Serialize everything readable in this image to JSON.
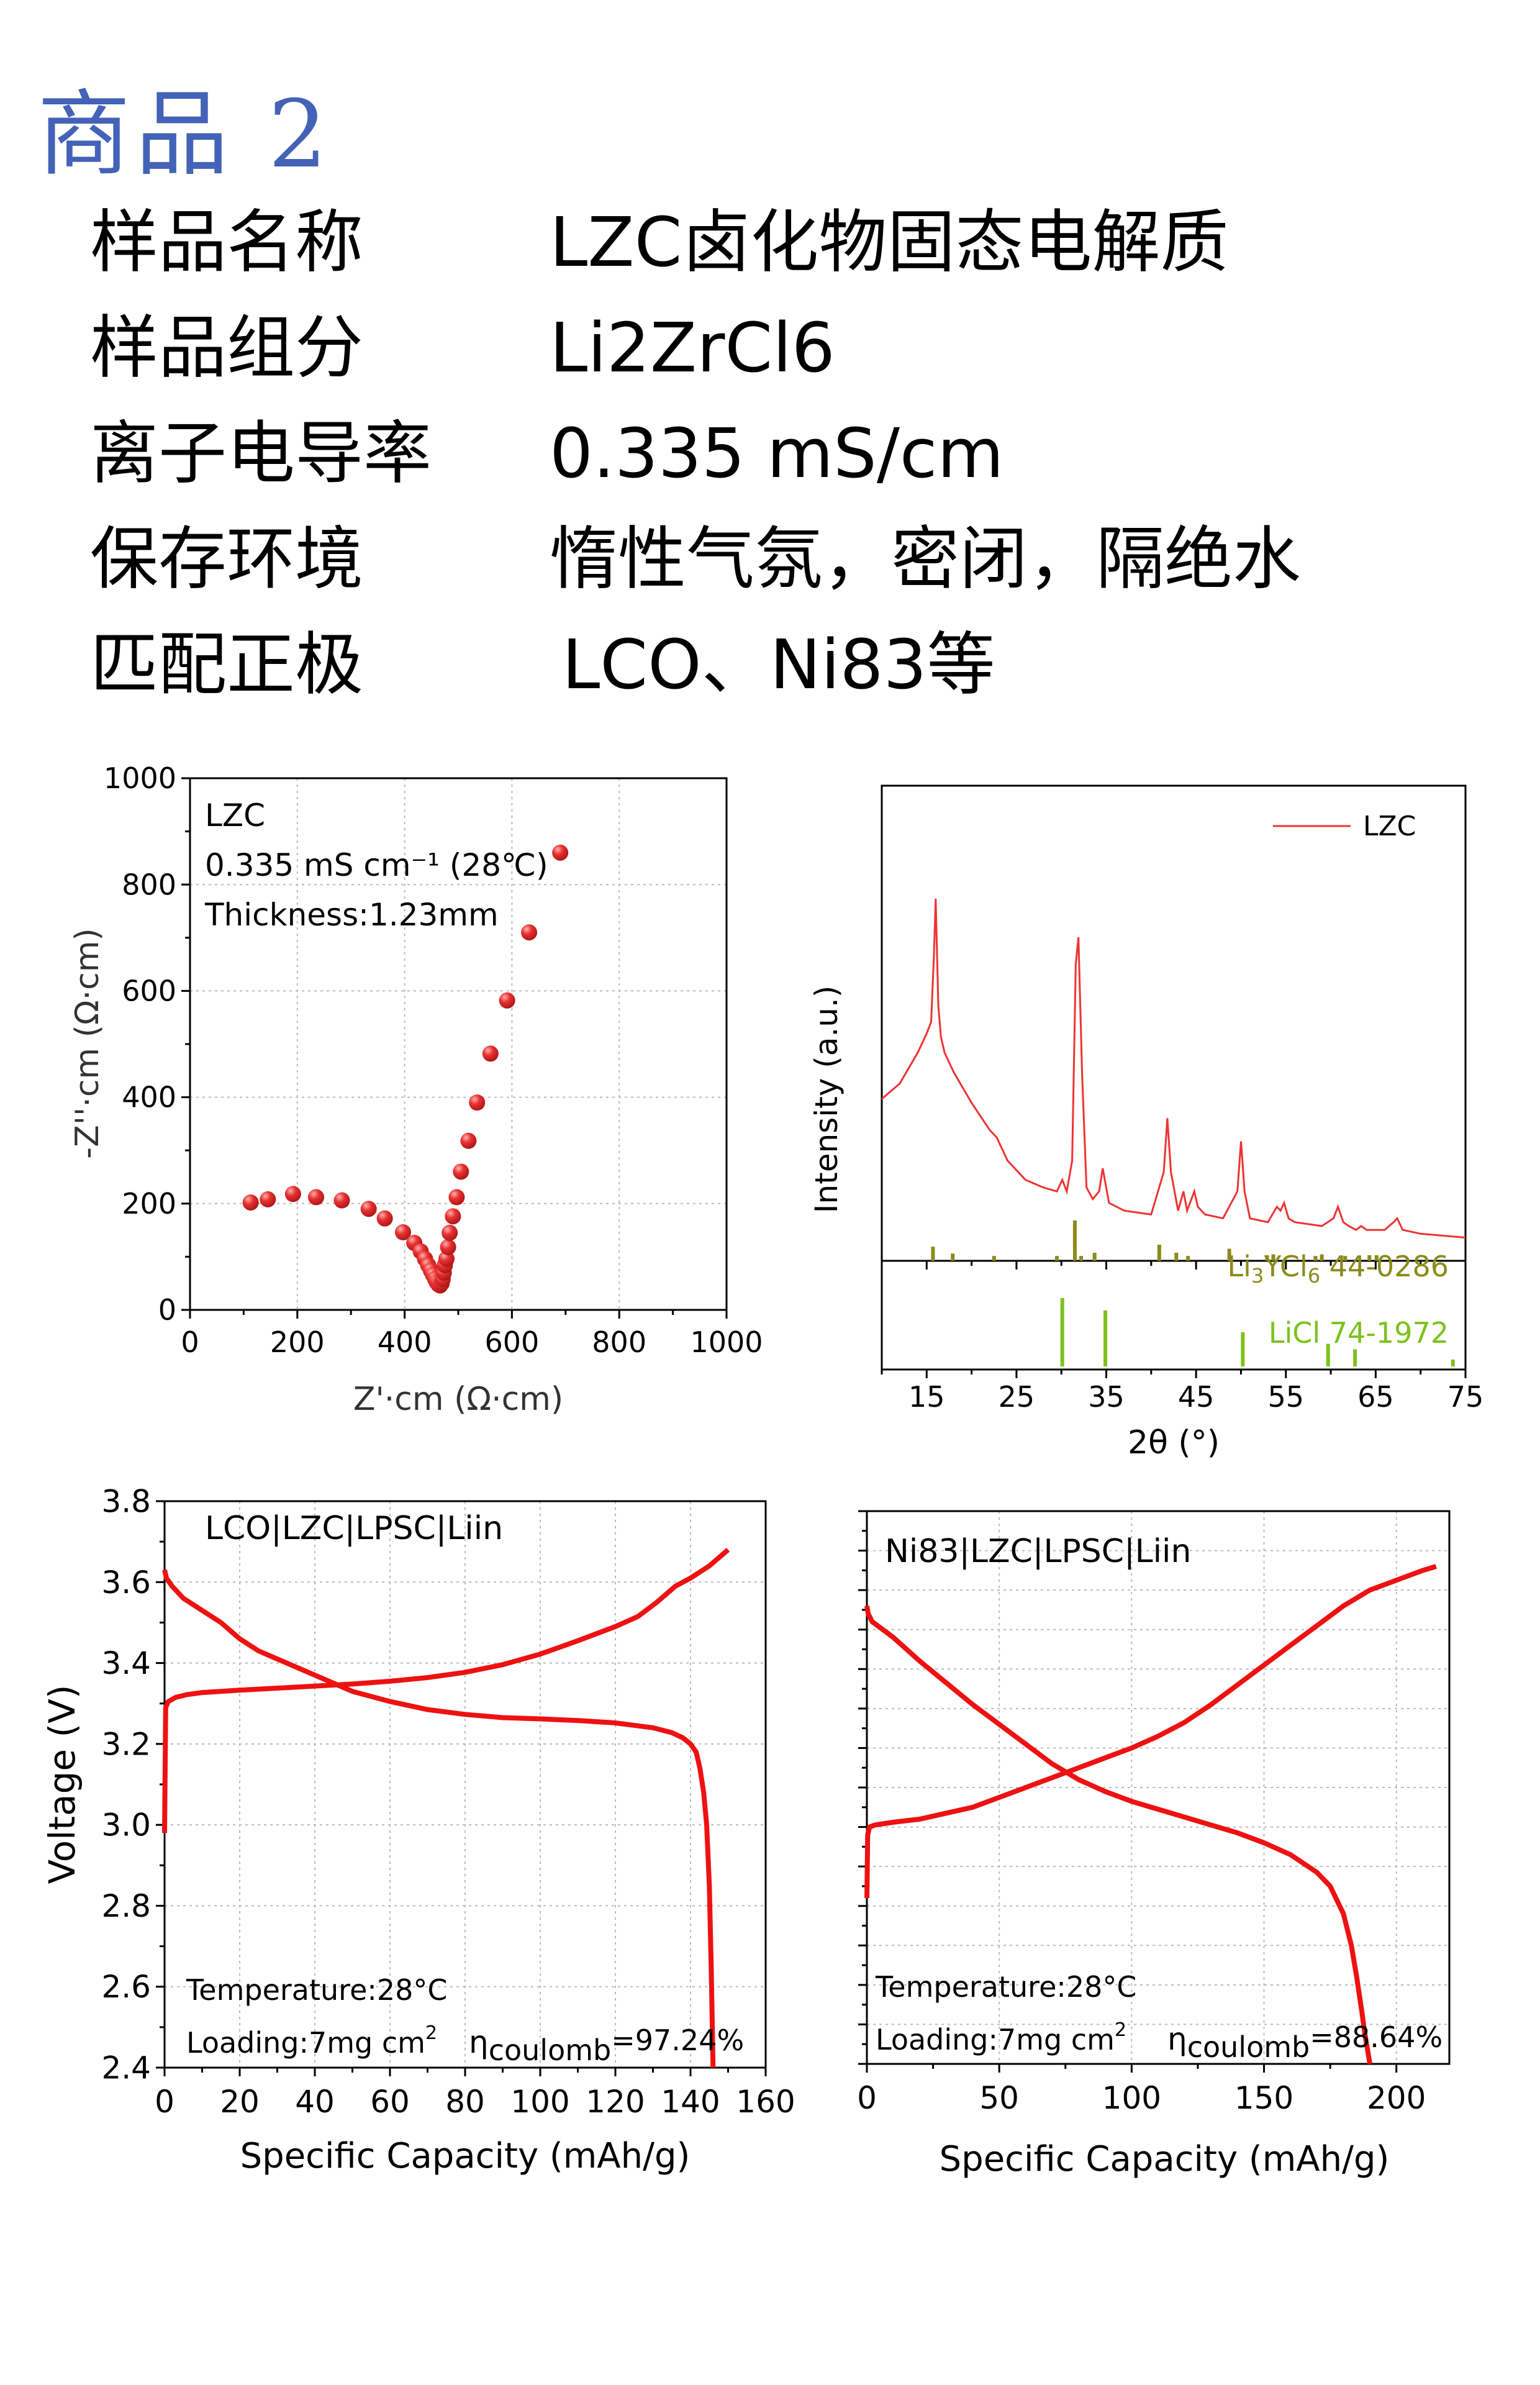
{
  "title": "商品 2",
  "specs": [
    {
      "label": "样品名称",
      "value": "LZC卤化物固态电解质"
    },
    {
      "label": "样品组分",
      "value": "Li2ZrCl6"
    },
    {
      "label": "离子电导率",
      "value": "0.335 mS/cm"
    },
    {
      "label": "保存环境",
      "value": "惰性气氛，密闭，隔绝水"
    },
    {
      "label": "匹配正极",
      "value": "LCO、Ni83等"
    }
  ],
  "colors": {
    "title": "#4362b8",
    "data_red": "#ee1111",
    "xrd_red": "#ee3333",
    "ref1": "#8b8b1a",
    "ref2": "#7cc21c"
  },
  "chart_data": [
    {
      "type": "scatter",
      "id": "eis",
      "xlabel": "Z'·cm (Ω·cm)",
      "ylabel": "-Z''·cm (Ω·cm)",
      "xlim": [
        0,
        1000
      ],
      "ylim": [
        0,
        1000
      ],
      "xticks": [
        0,
        200,
        400,
        600,
        800,
        1000
      ],
      "yticks": [
        0,
        200,
        400,
        600,
        800,
        1000
      ],
      "grid": true,
      "annotations": [
        "LZC",
        "0.335 mS cm⁻¹   (28℃)",
        "Thickness:1.23mm"
      ],
      "points": [
        [
          113,
          202
        ],
        [
          145,
          208
        ],
        [
          192,
          218
        ],
        [
          235,
          212
        ],
        [
          283,
          206
        ],
        [
          333,
          190
        ],
        [
          363,
          172
        ],
        [
          397,
          146
        ],
        [
          418,
          126
        ],
        [
          430,
          110
        ],
        [
          438,
          96
        ],
        [
          444,
          84
        ],
        [
          449,
          74
        ],
        [
          453,
          66
        ],
        [
          457,
          58
        ],
        [
          460,
          52
        ],
        [
          463,
          48
        ],
        [
          466,
          46
        ],
        [
          469,
          50
        ],
        [
          471,
          58
        ],
        [
          473,
          70
        ],
        [
          475,
          84
        ],
        [
          478,
          96
        ],
        [
          481,
          118
        ],
        [
          484,
          145
        ],
        [
          490,
          176
        ],
        [
          497,
          212
        ],
        [
          505,
          260
        ],
        [
          519,
          318
        ],
        [
          535,
          390
        ],
        [
          560,
          482
        ],
        [
          591,
          582
        ],
        [
          632,
          710
        ],
        [
          690,
          860
        ]
      ]
    },
    {
      "type": "line",
      "id": "xrd",
      "xlabel": "2θ (°)",
      "ylabel": "Intensity (a.u.)",
      "xlim": [
        10,
        75
      ],
      "xticks": [
        15,
        25,
        35,
        45,
        55,
        65,
        75
      ],
      "legend": {
        "label": "LZC",
        "position": "top-right"
      },
      "series": [
        {
          "name": "LZC",
          "x": [
            10,
            12,
            14,
            15,
            15.5,
            15.8,
            16,
            16.3,
            16.6,
            17,
            18,
            20,
            22,
            22.8,
            24,
            26,
            28,
            29.5,
            30.1,
            30.6,
            31.2,
            31.6,
            31.9,
            32.3,
            32.8,
            33.5,
            34.2,
            34.6,
            35.3,
            37,
            40,
            41.4,
            41.8,
            42.2,
            43,
            43.6,
            44,
            44.8,
            45.2,
            46,
            48,
            49.6,
            50,
            50.4,
            51,
            53,
            54,
            54.4,
            54.8,
            55.3,
            56,
            59,
            60.3,
            60.8,
            61.4,
            62,
            62.8,
            63.4,
            64,
            65,
            66,
            67,
            67.4,
            68,
            70,
            75
          ],
          "y": [
            0.38,
            0.42,
            0.5,
            0.55,
            0.58,
            0.75,
            0.9,
            0.62,
            0.54,
            0.5,
            0.45,
            0.37,
            0.3,
            0.28,
            0.22,
            0.17,
            0.15,
            0.14,
            0.17,
            0.14,
            0.22,
            0.73,
            0.8,
            0.45,
            0.15,
            0.12,
            0.14,
            0.2,
            0.11,
            0.09,
            0.08,
            0.19,
            0.33,
            0.19,
            0.09,
            0.14,
            0.09,
            0.14,
            0.1,
            0.08,
            0.07,
            0.14,
            0.27,
            0.14,
            0.07,
            0.06,
            0.1,
            0.09,
            0.11,
            0.07,
            0.06,
            0.05,
            0.07,
            0.1,
            0.06,
            0.05,
            0.04,
            0.05,
            0.04,
            0.04,
            0.04,
            0.06,
            0.07,
            0.04,
            0.03,
            0.02
          ]
        }
      ],
      "references": [
        {
          "name": "Li₃YCl₆ 44-0286",
          "label_main": "Li",
          "sub1": "3",
          "mid": "YCl",
          "sub2": "6",
          "tail": " 44-0286",
          "x": [
            15.7,
            17.9,
            22.5,
            29.5,
            31.5,
            32.2,
            33.7,
            40.9,
            42.8,
            44.1,
            48.7,
            52.9,
            53.6,
            58.3,
            59.0,
            61.6,
            64.3,
            65.1
          ],
          "rel": [
            0.35,
            0.18,
            0.12,
            0.12,
            1.0,
            0.12,
            0.2,
            0.4,
            0.2,
            0.12,
            0.3,
            0.14,
            0.16,
            0.12,
            0.16,
            0.12,
            0.14,
            0.14
          ]
        },
        {
          "name": "LiCl 74-1972",
          "x": [
            30.1,
            34.9,
            50.2,
            59.7,
            62.7,
            73.6
          ],
          "rel": [
            1.0,
            0.82,
            0.5,
            0.33,
            0.25,
            0.1
          ]
        }
      ]
    },
    {
      "type": "line",
      "id": "lco",
      "xlabel": "Specific Capacity (mAh/g)",
      "ylabel": "Voltage (V)",
      "xlim": [
        0,
        160
      ],
      "ylim": [
        2.4,
        3.8
      ],
      "xticks": [
        0,
        20,
        40,
        60,
        80,
        100,
        120,
        140,
        160
      ],
      "yticks": [
        2.4,
        2.6,
        2.8,
        3.0,
        3.2,
        3.4,
        3.6,
        3.8
      ],
      "grid": true,
      "annotations": {
        "cell": "LCO|LZC|LPSC|Liin",
        "temp": "Temperature:28°C",
        "loading": "Loading:7mg cm",
        "loading_sup": "2",
        "eta": "η",
        "eta_sub": "coulomb",
        "eta_val": "=97.24%"
      },
      "series": [
        {
          "name": "charge",
          "x": [
            0,
            0.3,
            1,
            3,
            6,
            10,
            20,
            30,
            40,
            50,
            60,
            70,
            80,
            90,
            100,
            110,
            120,
            126,
            131,
            136,
            140,
            145,
            150
          ],
          "y": [
            2.98,
            3.29,
            3.305,
            3.315,
            3.322,
            3.327,
            3.333,
            3.338,
            3.343,
            3.348,
            3.355,
            3.364,
            3.377,
            3.396,
            3.422,
            3.455,
            3.49,
            3.515,
            3.55,
            3.59,
            3.61,
            3.64,
            3.68
          ]
        },
        {
          "name": "discharge",
          "x": [
            0,
            0.5,
            2,
            5,
            10,
            15,
            20,
            25,
            30,
            40,
            50,
            60,
            70,
            80,
            90,
            100,
            110,
            120,
            130,
            135,
            138,
            140,
            141.5,
            142.5,
            143.5,
            144.3,
            145,
            145.5,
            146
          ],
          "y": [
            3.63,
            3.61,
            3.59,
            3.56,
            3.53,
            3.5,
            3.46,
            3.43,
            3.41,
            3.37,
            3.33,
            3.305,
            3.285,
            3.273,
            3.265,
            3.262,
            3.258,
            3.252,
            3.24,
            3.228,
            3.215,
            3.2,
            3.18,
            3.14,
            3.08,
            3.0,
            2.85,
            2.65,
            2.4
          ]
        }
      ]
    },
    {
      "type": "line",
      "id": "ni83",
      "xlabel": "Specific Capacity (mAh/g)",
      "xlim": [
        0,
        220
      ],
      "ylim": [
        2.4,
        3.8
      ],
      "xticks": [
        0,
        50,
        100,
        150,
        200
      ],
      "grid": true,
      "annotations": {
        "cell": "Ni83|LZC|LPSC|Liin",
        "temp": "Temperature:28°C",
        "loading": "Loading:7mg cm",
        "loading_sup": "2",
        "eta": "η",
        "eta_sub": "coulomb",
        "eta_val": "=88.64%"
      },
      "series": [
        {
          "name": "charge",
          "x": [
            0,
            0.3,
            1,
            3,
            10,
            20,
            30,
            40,
            50,
            60,
            70,
            80,
            90,
            100,
            110,
            120,
            130,
            140,
            150,
            160,
            170,
            180,
            190,
            200,
            210,
            215
          ],
          "y": [
            2.82,
            2.98,
            3.0,
            3.005,
            3.012,
            3.02,
            3.035,
            3.05,
            3.075,
            3.1,
            3.125,
            3.15,
            3.175,
            3.2,
            3.23,
            3.265,
            3.31,
            3.36,
            3.41,
            3.46,
            3.51,
            3.56,
            3.6,
            3.625,
            3.65,
            3.66
          ]
        },
        {
          "name": "discharge",
          "x": [
            0,
            0.5,
            2,
            5,
            10,
            20,
            30,
            40,
            50,
            60,
            70,
            80,
            90,
            100,
            110,
            120,
            130,
            140,
            150,
            160,
            170,
            175,
            180,
            183,
            185,
            187,
            188,
            189,
            190
          ],
          "y": [
            3.56,
            3.54,
            3.52,
            3.505,
            3.48,
            3.42,
            3.365,
            3.31,
            3.26,
            3.21,
            3.16,
            3.12,
            3.09,
            3.065,
            3.045,
            3.025,
            3.005,
            2.985,
            2.96,
            2.93,
            2.885,
            2.85,
            2.78,
            2.7,
            2.62,
            2.53,
            2.48,
            2.44,
            2.4
          ]
        }
      ]
    }
  ]
}
